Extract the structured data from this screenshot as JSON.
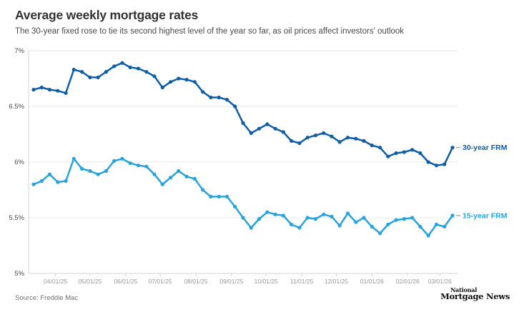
{
  "chart_data": {
    "type": "line",
    "title": "Average weekly mortgage rates",
    "subtitle": "The 30-year fixed rose to tie its second highest level of the year so far, as oil prices affect investors' outlook",
    "x": [
      "03/13/25",
      "03/20/25",
      "03/27/25",
      "04/03/25",
      "04/10/25",
      "04/17/25",
      "04/24/25",
      "05/01/25",
      "05/08/25",
      "05/15/25",
      "05/22/25",
      "05/29/25",
      "06/05/25",
      "06/12/25",
      "06/19/25",
      "06/26/25",
      "07/03/25",
      "07/10/25",
      "07/17/25",
      "07/24/25",
      "07/31/25",
      "08/07/25",
      "08/14/25",
      "08/21/25",
      "08/28/25",
      "09/04/25",
      "09/11/25",
      "09/18/25",
      "09/25/25",
      "10/02/25",
      "10/09/25",
      "10/16/25",
      "10/23/25",
      "10/30/25",
      "11/06/25",
      "11/13/25",
      "11/20/25",
      "11/27/25",
      "12/04/25",
      "12/11/25",
      "12/18/25",
      "12/25/25",
      "01/01/26",
      "01/08/26",
      "01/15/26",
      "01/22/26",
      "01/29/26",
      "02/05/26",
      "02/12/26",
      "02/19/26",
      "02/26/26",
      "03/05/26",
      "03/12/26"
    ],
    "series": [
      {
        "name": "30-year FRM",
        "color": "#0f5da5",
        "values": [
          6.65,
          6.67,
          6.65,
          6.64,
          6.62,
          6.83,
          6.81,
          6.76,
          6.76,
          6.81,
          6.86,
          6.89,
          6.85,
          6.84,
          6.81,
          6.77,
          6.67,
          6.72,
          6.75,
          6.74,
          6.72,
          6.63,
          6.58,
          6.58,
          6.56,
          6.5,
          6.35,
          6.26,
          6.3,
          6.34,
          6.3,
          6.27,
          6.19,
          6.17,
          6.22,
          6.24,
          6.26,
          6.23,
          6.18,
          6.22,
          6.21,
          6.19,
          6.15,
          6.13,
          6.05,
          6.08,
          6.09,
          6.11,
          6.08,
          6.0,
          5.97,
          5.98,
          6.13
        ]
      },
      {
        "name": "15-year FRM",
        "color": "#29a3dc",
        "values": [
          5.8,
          5.83,
          5.89,
          5.82,
          5.83,
          6.03,
          5.94,
          5.92,
          5.89,
          5.92,
          6.01,
          6.03,
          5.99,
          5.97,
          5.96,
          5.89,
          5.8,
          5.86,
          5.92,
          5.87,
          5.85,
          5.75,
          5.69,
          5.69,
          5.69,
          5.6,
          5.5,
          5.41,
          5.49,
          5.55,
          5.53,
          5.52,
          5.44,
          5.41,
          5.5,
          5.49,
          5.53,
          5.51,
          5.43,
          5.54,
          5.46,
          5.5,
          5.42,
          5.36,
          5.44,
          5.48,
          5.49,
          5.5,
          5.42,
          5.34,
          5.44,
          5.42,
          5.52
        ]
      }
    ],
    "x_tick_labels": [
      "04/01/25",
      "05/01/25",
      "06/01/25",
      "07/01/25",
      "08/01/25",
      "09/01/25",
      "10/01/25",
      "11/01/25",
      "12/01/25",
      "01/01/26",
      "02/01/26",
      "03/01/26"
    ],
    "y_ticks": [
      7,
      6.5,
      6,
      5.5,
      5
    ],
    "y_tick_labels": [
      "7%",
      "6.5%",
      "6%",
      "5.5%",
      "5%"
    ],
    "ylim": [
      5,
      7
    ],
    "grid": "horizontal",
    "legend_position": "right-of-last-point",
    "colors": {
      "grid": "#e9e9e9",
      "axis": "#d4d4d4",
      "y_label": "#4d4d4d",
      "x_label": "#999999",
      "legend_dash": "#9b9b9b"
    }
  },
  "footer": {
    "source": "Source: Freddie Mac",
    "logo": {
      "line1": "National",
      "line2": "Mortgage News"
    }
  }
}
